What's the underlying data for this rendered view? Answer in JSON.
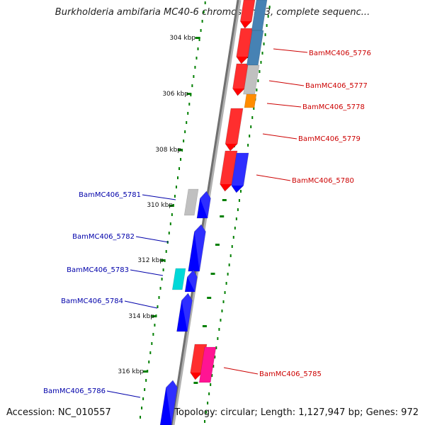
{
  "title": "Burkholderia ambifaria MC40-6 chromosome 3, complete sequenc...",
  "footer": {
    "accession": "Accession: NC_010557",
    "summary": "Topology: circular; Length: 1,127,947 bp; Genes: 972"
  },
  "scale": {
    "ticks": [
      "304 kbp",
      "306 kbp",
      "308 kbp",
      "310 kbp",
      "312 kbp",
      "314 kbp",
      "316 kbp"
    ]
  },
  "genes": {
    "right": [
      {
        "label": "BamMC406_5776",
        "color": "#cc0000"
      },
      {
        "label": "BamMC406_5777",
        "color": "#cc0000"
      },
      {
        "label": "BamMC406_5778",
        "color": "#cc0000"
      },
      {
        "label": "BamMC406_5779",
        "color": "#cc0000"
      },
      {
        "label": "BamMC406_5780",
        "color": "#cc0000"
      },
      {
        "label": "BamMC406_5785",
        "color": "#cc0000"
      }
    ],
    "left": [
      {
        "label": "BamMC406_5781",
        "color": "#0000aa"
      },
      {
        "label": "BamMC406_5782",
        "color": "#0000aa"
      },
      {
        "label": "BamMC406_5783",
        "color": "#0000aa"
      },
      {
        "label": "BamMC406_5784",
        "color": "#0000aa"
      },
      {
        "label": "BamMC406_5786",
        "color": "#0000aa"
      }
    ]
  },
  "colors": {
    "backbone": "#808080",
    "forward_strand": "#ff0000",
    "reverse_strand": "#0000ff",
    "cog_blue": "#4682b4",
    "cog_gray": "#c0c0c0",
    "cog_orange": "#ff8c00",
    "cog_cyan": "#00d8d8",
    "cog_magenta": "#ff1493",
    "gc_dots": "#008000"
  }
}
